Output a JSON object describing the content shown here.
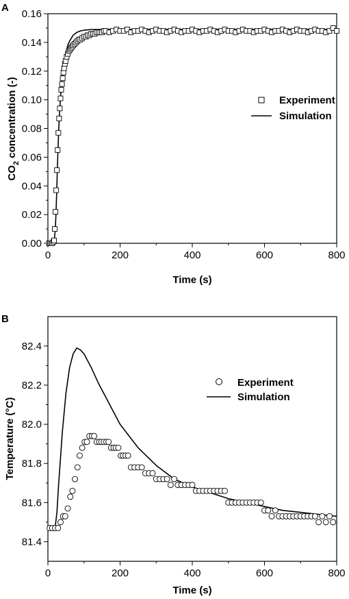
{
  "chart_data": [
    {
      "panel_label": "A",
      "type": "scatter",
      "xlabel": "Time (s)",
      "ylabel_main": "CO",
      "ylabel_sub": "2",
      "ylabel_rest": " concentration (-)",
      "xlim": [
        0,
        800
      ],
      "ylim": [
        0,
        0.16
      ],
      "xticks": [
        0,
        200,
        400,
        600,
        800
      ],
      "yticks": [
        0.0,
        0.02,
        0.04,
        0.06,
        0.08,
        0.1,
        0.12,
        0.14,
        0.16
      ],
      "ytick_labels": [
        "0.00",
        "0.02",
        "0.04",
        "0.06",
        "0.08",
        "0.10",
        "0.12",
        "0.14",
        "0.16"
      ],
      "legend_position": "right-middle",
      "series": [
        {
          "name": "Experiment",
          "marker": "square",
          "x": [
            3,
            6,
            9,
            12,
            15,
            17,
            19,
            21,
            23,
            25,
            27,
            29,
            31,
            33,
            35,
            37,
            39,
            41,
            43,
            45,
            47,
            49,
            52,
            55,
            58,
            61,
            64,
            67,
            70,
            74,
            78,
            82,
            86,
            90,
            95,
            100,
            105,
            110,
            115,
            120,
            125,
            130,
            135,
            140,
            145,
            150,
            155,
            160,
            170,
            180,
            190,
            200,
            210,
            220,
            230,
            240,
            250,
            260,
            270,
            280,
            290,
            300,
            310,
            320,
            330,
            340,
            350,
            360,
            370,
            380,
            390,
            400,
            410,
            420,
            430,
            440,
            450,
            460,
            470,
            480,
            490,
            500,
            510,
            520,
            530,
            540,
            550,
            560,
            570,
            580,
            590,
            600,
            610,
            620,
            630,
            640,
            650,
            660,
            670,
            680,
            690,
            700,
            710,
            720,
            730,
            740,
            750,
            760,
            770,
            780,
            790,
            800
          ],
          "y": [
            0,
            0,
            0,
            0,
            0.001,
            0.002,
            0.01,
            0.022,
            0.037,
            0.051,
            0.065,
            0.077,
            0.087,
            0.094,
            0.101,
            0.107,
            0.111,
            0.115,
            0.119,
            0.122,
            0.125,
            0.127,
            0.13,
            0.132,
            0.134,
            0.135,
            0.136,
            0.137,
            0.138,
            0.139,
            0.14,
            0.141,
            0.142,
            0.142,
            0.143,
            0.144,
            0.144,
            0.145,
            0.145,
            0.146,
            0.146,
            0.146,
            0.147,
            0.147,
            0.147,
            0.147,
            0.148,
            0.148,
            0.147,
            0.148,
            0.149,
            0.148,
            0.148,
            0.149,
            0.147,
            0.148,
            0.148,
            0.149,
            0.148,
            0.147,
            0.148,
            0.149,
            0.148,
            0.148,
            0.147,
            0.148,
            0.149,
            0.148,
            0.147,
            0.148,
            0.148,
            0.149,
            0.148,
            0.147,
            0.148,
            0.148,
            0.149,
            0.148,
            0.147,
            0.148,
            0.149,
            0.148,
            0.148,
            0.147,
            0.148,
            0.149,
            0.148,
            0.148,
            0.147,
            0.148,
            0.148,
            0.149,
            0.148,
            0.147,
            0.148,
            0.148,
            0.149,
            0.148,
            0.147,
            0.148,
            0.149,
            0.148,
            0.148,
            0.147,
            0.148,
            0.149,
            0.148,
            0.148,
            0.147,
            0.148,
            0.15,
            0.148
          ]
        },
        {
          "name": "Simulation",
          "marker": "line",
          "x": [
            0,
            10,
            15,
            18,
            20,
            22,
            24,
            26,
            28,
            30,
            33,
            36,
            40,
            45,
            50,
            55,
            60,
            70,
            80,
            90,
            100,
            120,
            140,
            160,
            200,
            300,
            400,
            500,
            600,
            700,
            800
          ],
          "y": [
            0,
            0,
            0.0005,
            0.003,
            0.008,
            0.018,
            0.033,
            0.05,
            0.066,
            0.079,
            0.094,
            0.106,
            0.117,
            0.127,
            0.133,
            0.138,
            0.141,
            0.145,
            0.147,
            0.148,
            0.1485,
            0.149,
            0.149,
            0.149,
            0.149,
            0.149,
            0.149,
            0.149,
            0.149,
            0.149,
            0.149
          ]
        }
      ]
    },
    {
      "panel_label": "B",
      "type": "scatter",
      "xlabel": "Time (s)",
      "ylabel": "Temperature (°C)",
      "xlim": [
        0,
        800
      ],
      "ylim": [
        81.3,
        82.55
      ],
      "xticks": [
        0,
        200,
        400,
        600,
        800
      ],
      "yticks": [
        81.4,
        81.6,
        81.8,
        82.0,
        82.2,
        82.4
      ],
      "ytick_labels": [
        "81.4",
        "81.6",
        "81.8",
        "82.0",
        "82.2",
        "82.4"
      ],
      "legend_position": "right-middle",
      "series": [
        {
          "name": "Experiment",
          "marker": "circle",
          "x": [
            5,
            12,
            20,
            28,
            35,
            42,
            48,
            55,
            62,
            68,
            75,
            82,
            88,
            95,
            102,
            108,
            115,
            122,
            128,
            135,
            142,
            148,
            155,
            162,
            168,
            175,
            182,
            188,
            195,
            202,
            208,
            215,
            222,
            230,
            240,
            250,
            260,
            270,
            280,
            290,
            300,
            310,
            320,
            330,
            340,
            350,
            360,
            370,
            380,
            390,
            400,
            410,
            420,
            430,
            440,
            450,
            460,
            470,
            480,
            490,
            500,
            510,
            520,
            530,
            540,
            550,
            560,
            570,
            580,
            590,
            600,
            610,
            620,
            630,
            640,
            650,
            660,
            670,
            680,
            690,
            700,
            710,
            720,
            730,
            740,
            750,
            760,
            770,
            780,
            790
          ],
          "y": [
            81.47,
            81.47,
            81.47,
            81.47,
            81.5,
            81.53,
            81.53,
            81.57,
            81.63,
            81.66,
            81.72,
            81.78,
            81.84,
            81.88,
            81.91,
            81.91,
            81.94,
            81.94,
            81.94,
            81.91,
            81.91,
            81.91,
            81.91,
            81.91,
            81.91,
            81.88,
            81.88,
            81.88,
            81.88,
            81.84,
            81.84,
            81.84,
            81.84,
            81.78,
            81.78,
            81.78,
            81.78,
            81.75,
            81.75,
            81.75,
            81.72,
            81.72,
            81.72,
            81.72,
            81.69,
            81.72,
            81.69,
            81.69,
            81.69,
            81.69,
            81.69,
            81.66,
            81.66,
            81.66,
            81.66,
            81.66,
            81.66,
            81.66,
            81.66,
            81.66,
            81.6,
            81.6,
            81.6,
            81.6,
            81.6,
            81.6,
            81.6,
            81.6,
            81.6,
            81.6,
            81.56,
            81.56,
            81.53,
            81.56,
            81.53,
            81.53,
            81.53,
            81.53,
            81.53,
            81.53,
            81.53,
            81.53,
            81.53,
            81.53,
            81.53,
            81.5,
            81.53,
            81.5,
            81.53,
            81.5
          ]
        },
        {
          "name": "Simulation",
          "marker": "line",
          "x": [
            0,
            10,
            20,
            25,
            30,
            40,
            50,
            60,
            70,
            80,
            90,
            100,
            120,
            140,
            160,
            180,
            200,
            250,
            300,
            350,
            400,
            450,
            500,
            550,
            600,
            650,
            700,
            750,
            800
          ],
          "y": [
            81.47,
            81.47,
            81.47,
            81.55,
            81.7,
            81.96,
            82.16,
            82.29,
            82.36,
            82.39,
            82.38,
            82.36,
            82.29,
            82.21,
            82.14,
            82.07,
            82.0,
            81.88,
            81.79,
            81.72,
            81.68,
            81.65,
            81.62,
            81.6,
            81.58,
            81.56,
            81.55,
            81.54,
            81.53
          ]
        }
      ]
    }
  ]
}
